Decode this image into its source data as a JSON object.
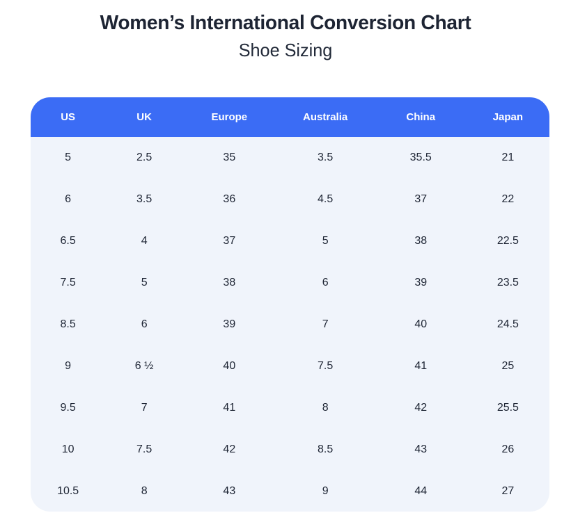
{
  "page": {
    "title": "Women’s International Conversion Chart",
    "subtitle": "Shoe Sizing"
  },
  "colors": {
    "header_bg": "#3b6cf5",
    "header_text": "#ffffff",
    "body_bg": "#f0f4fb",
    "cell_text": "#1d2433",
    "title_text": "#1d2433",
    "page_bg": "#ffffff"
  },
  "chart_data": {
    "type": "table",
    "title": "Women’s International Conversion Chart",
    "subtitle": "Shoe Sizing",
    "columns": [
      "US",
      "UK",
      "Europe",
      "Australia",
      "China",
      "Japan"
    ],
    "rows": [
      [
        "5",
        "2.5",
        "35",
        "3.5",
        "35.5",
        "21"
      ],
      [
        "6",
        "3.5",
        "36",
        "4.5",
        "37",
        "22"
      ],
      [
        "6.5",
        "4",
        "37",
        "5",
        "38",
        "22.5"
      ],
      [
        "7.5",
        "5",
        "38",
        "6",
        "39",
        "23.5"
      ],
      [
        "8.5",
        "6",
        "39",
        "7",
        "40",
        "24.5"
      ],
      [
        "9",
        "6 ½",
        "40",
        "7.5",
        "41",
        "25"
      ],
      [
        "9.5",
        "7",
        "41",
        "8",
        "42",
        "25.5"
      ],
      [
        "10",
        "7.5",
        "42",
        "8.5",
        "43",
        "26"
      ],
      [
        "10.5",
        "8",
        "43",
        "9",
        "44",
        "27"
      ]
    ]
  }
}
